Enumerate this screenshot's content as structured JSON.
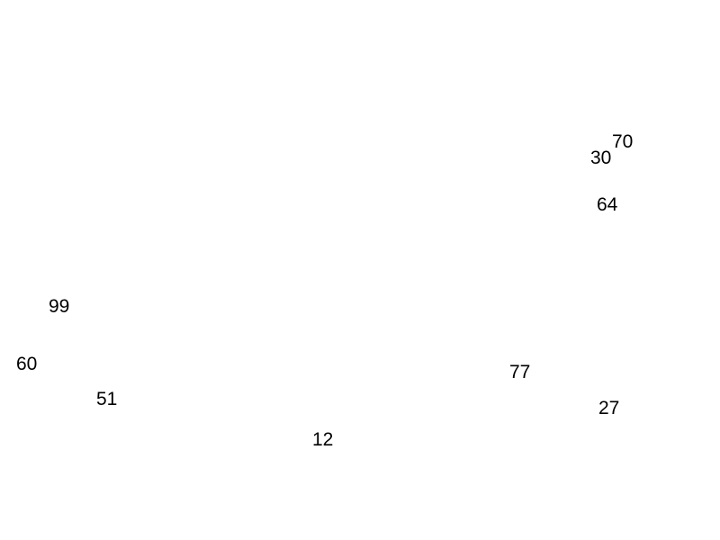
{
  "numbers": [
    "70",
    "30",
    "64",
    "99",
    "60",
    "51",
    "77",
    "27",
    "12"
  ]
}
